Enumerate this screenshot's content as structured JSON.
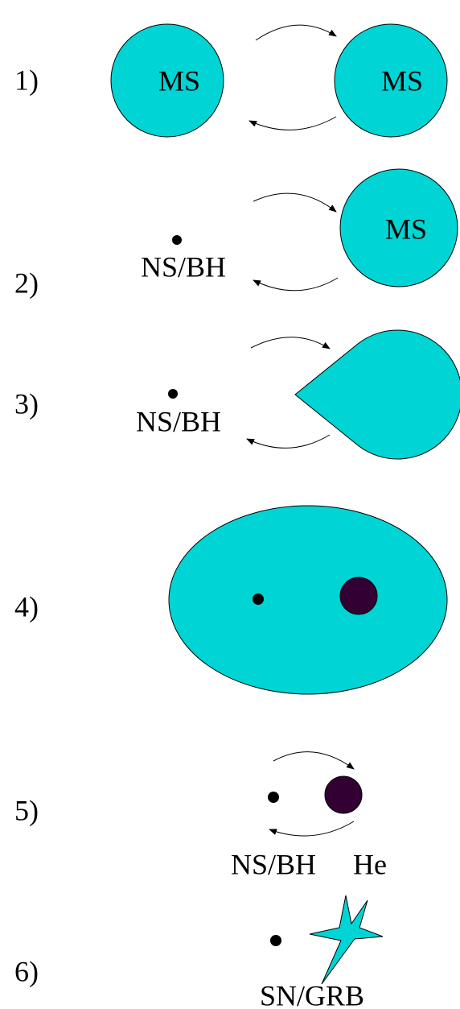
{
  "stages": [
    {
      "label": "1)",
      "texts": [
        "MS",
        "MS"
      ]
    },
    {
      "label": "2)",
      "texts": [
        "NS/BH",
        "MS"
      ]
    },
    {
      "label": "3)",
      "texts": [
        "NS/BH"
      ]
    },
    {
      "label": "4)",
      "texts": []
    },
    {
      "label": "5)",
      "texts": [
        "NS/BH",
        "He"
      ]
    },
    {
      "label": "6)",
      "texts": [
        "SN/GRB"
      ]
    }
  ]
}
